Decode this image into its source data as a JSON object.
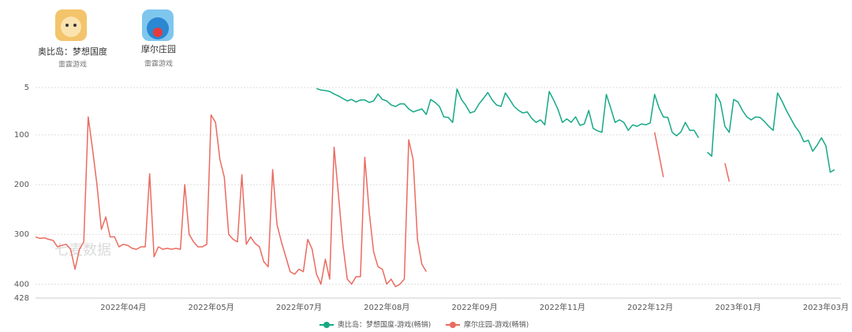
{
  "header": {
    "apps": [
      {
        "name": "奥比岛：梦想国度",
        "publisher": "雷霆游戏"
      },
      {
        "name": "摩尔庄园",
        "publisher": "雷霆游戏"
      }
    ]
  },
  "chart_data": {
    "type": "line",
    "watermark": "七麦数据",
    "invert_y": true,
    "grid": true,
    "ylim": [
      5,
      428
    ],
    "yticks": [
      5,
      100,
      200,
      300,
      400,
      428
    ],
    "categories": [
      null,
      null,
      null,
      null,
      null,
      null,
      null,
      null,
      null,
      null,
      null,
      null,
      null,
      null,
      null,
      null,
      null,
      null,
      null,
      null,
      "2022年04月",
      null,
      null,
      null,
      null,
      null,
      null,
      null,
      null,
      null,
      null,
      null,
      null,
      null,
      null,
      null,
      null,
      null,
      null,
      null,
      "2022年05月",
      null,
      null,
      null,
      null,
      null,
      null,
      null,
      null,
      null,
      null,
      null,
      null,
      null,
      null,
      null,
      null,
      null,
      null,
      null,
      "2022年07月",
      null,
      null,
      null,
      null,
      null,
      null,
      null,
      null,
      null,
      null,
      null,
      null,
      null,
      null,
      null,
      null,
      null,
      null,
      null,
      "2022年08月",
      null,
      null,
      null,
      null,
      null,
      null,
      null,
      null,
      null,
      null,
      null,
      null,
      null,
      null,
      null,
      null,
      null,
      null,
      null,
      "2022年09月",
      null,
      null,
      null,
      null,
      null,
      null,
      null,
      null,
      null,
      null,
      null,
      null,
      null,
      null,
      null,
      null,
      null,
      null,
      null,
      "2022年11月",
      null,
      null,
      null,
      null,
      null,
      null,
      null,
      null,
      null,
      null,
      null,
      null,
      null,
      null,
      null,
      null,
      null,
      null,
      null,
      "2022年12月",
      null,
      null,
      null,
      null,
      null,
      null,
      null,
      null,
      null,
      null,
      null,
      null,
      null,
      null,
      null,
      null,
      null,
      null,
      null,
      "2023年01月",
      null,
      null,
      null,
      null,
      null,
      null,
      null,
      null,
      null,
      null,
      null,
      null,
      null,
      null,
      null,
      null,
      null,
      null,
      null,
      "2023年03月",
      null,
      null
    ],
    "series": [
      {
        "name": "奥比岛：梦想国度-游戏(畅销)",
        "color": "#16a886",
        "values": [
          null,
          null,
          null,
          null,
          null,
          null,
          null,
          null,
          null,
          null,
          null,
          null,
          null,
          null,
          null,
          null,
          null,
          null,
          null,
          null,
          null,
          null,
          null,
          null,
          null,
          null,
          null,
          null,
          null,
          null,
          null,
          null,
          null,
          null,
          null,
          null,
          null,
          null,
          null,
          null,
          null,
          null,
          null,
          null,
          null,
          null,
          null,
          null,
          null,
          null,
          null,
          null,
          null,
          null,
          null,
          null,
          null,
          null,
          null,
          null,
          null,
          null,
          null,
          null,
          7,
          10,
          11,
          13,
          18,
          22,
          27,
          32,
          29,
          34,
          30,
          30,
          35,
          32,
          18,
          29,
          32,
          40,
          43,
          38,
          38,
          48,
          54,
          51,
          48,
          59,
          29,
          35,
          43,
          64,
          65,
          75,
          8,
          29,
          41,
          56,
          53,
          38,
          27,
          15,
          30,
          40,
          43,
          16,
          29,
          43,
          51,
          56,
          54,
          67,
          75,
          70,
          80,
          13,
          30,
          49,
          75,
          68,
          75,
          64,
          81,
          78,
          51,
          87,
          92,
          95,
          19,
          46,
          75,
          70,
          75,
          91,
          80,
          83,
          78,
          80,
          76,
          19,
          46,
          64,
          65,
          95,
          102,
          94,
          75,
          91,
          91,
          106,
          null,
          135,
          143,
          18,
          35,
          83,
          95,
          29,
          34,
          51,
          64,
          70,
          64,
          65,
          73,
          83,
          91,
          16,
          32,
          51,
          67,
          83,
          95,
          114,
          111,
          133,
          121,
          106,
          122,
          175,
          170
        ]
      },
      {
        "name": "摩尔庄园-游戏(畅销)",
        "color": "#ea6b60",
        "values": [
          305,
          308,
          307,
          310,
          312,
          325,
          322,
          320,
          330,
          370,
          330,
          315,
          64,
          130,
          200,
          290,
          265,
          305,
          305,
          325,
          320,
          322,
          328,
          330,
          325,
          325,
          178,
          345,
          325,
          330,
          328,
          330,
          328,
          330,
          200,
          300,
          315,
          325,
          325,
          320,
          60,
          75,
          150,
          185,
          300,
          310,
          315,
          180,
          320,
          305,
          318,
          325,
          355,
          365,
          170,
          280,
          315,
          345,
          375,
          380,
          370,
          375,
          310,
          330,
          380,
          400,
          350,
          390,
          125,
          220,
          320,
          390,
          400,
          385,
          385,
          145,
          255,
          335,
          365,
          370,
          400,
          390,
          405,
          400,
          390,
          110,
          150,
          310,
          360,
          375,
          null,
          null,
          null,
          null,
          null,
          null,
          null,
          null,
          null,
          null,
          null,
          null,
          null,
          null,
          null,
          null,
          null,
          null,
          null,
          null,
          null,
          null,
          null,
          null,
          null,
          null,
          null,
          null,
          null,
          null,
          null,
          null,
          null,
          null,
          null,
          null,
          null,
          null,
          null,
          null,
          null,
          null,
          null,
          null,
          null,
          null,
          null,
          null,
          null,
          null,
          null,
          95,
          140,
          185,
          null,
          null,
          null,
          null,
          null,
          null,
          null,
          null,
          null,
          null,
          null,
          null,
          null,
          157,
          194,
          null,
          null,
          null,
          null,
          null,
          null,
          null,
          null,
          null,
          null,
          null,
          null,
          null,
          null,
          null,
          null,
          null,
          null,
          null,
          null,
          null,
          null,
          null,
          null
        ]
      }
    ]
  }
}
